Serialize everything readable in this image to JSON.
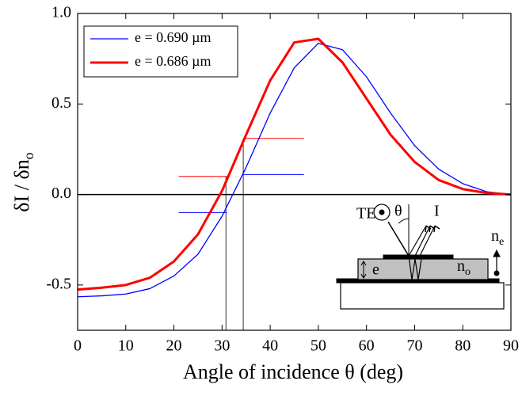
{
  "chart_data": {
    "type": "line",
    "xlabel": "Angle of incidence θ (deg)",
    "ylabel": "δI / δn",
    "ylabel_sub": "o",
    "x": [
      0,
      5,
      10,
      15,
      20,
      25,
      30,
      35,
      40,
      45,
      50,
      55,
      60,
      65,
      70,
      75,
      80,
      85,
      90
    ],
    "series": [
      {
        "name": "e = 0.690 µm",
        "color": "#0000ff",
        "width": 1.3,
        "values": [
          -0.565,
          -0.56,
          -0.55,
          -0.52,
          -0.45,
          -0.33,
          -0.12,
          0.15,
          0.45,
          0.7,
          0.835,
          0.8,
          0.65,
          0.45,
          0.27,
          0.14,
          0.06,
          0.015,
          0
        ]
      },
      {
        "name": "e = 0.686 µm",
        "color": "#ff0000",
        "width": 3,
        "values": [
          -0.525,
          -0.515,
          -0.5,
          -0.46,
          -0.37,
          -0.22,
          0.02,
          0.33,
          0.63,
          0.84,
          0.86,
          0.73,
          0.53,
          0.33,
          0.18,
          0.08,
          0.03,
          0.008,
          0
        ]
      }
    ],
    "xlim": [
      0,
      90
    ],
    "xticks": [
      0,
      10,
      20,
      30,
      40,
      50,
      60,
      70,
      80,
      90
    ],
    "ylim": [
      -0.75,
      1.0
    ],
    "yticks": [
      -0.5,
      {
        "value": 0,
        "label": "0.0"
      },
      0.5,
      {
        "value": 1,
        "label": "1.0"
      }
    ],
    "hlines": [
      0
    ],
    "segments": [
      {
        "color": "#ff0000",
        "x": [
          21,
          31
        ],
        "y": 0.1
      },
      {
        "color": "#ff0000",
        "x": [
          34.4,
          47
        ],
        "y": 0.31
      },
      {
        "color": "#0000ff",
        "x": [
          21,
          31
        ],
        "y": -0.1
      },
      {
        "color": "#0000ff",
        "x": [
          34.4,
          47
        ],
        "y": 0.11
      }
    ],
    "vlines": [
      {
        "x": 30.8,
        "y": 0.1
      },
      {
        "x": 34.4,
        "y": 0.31
      }
    ],
    "legend": "upper left",
    "inset": {
      "te": "TE",
      "theta": "θ",
      "i": "I",
      "ne": "n",
      "ne_sub": "e",
      "no": "n",
      "no_sub": "o",
      "e": "e"
    }
  }
}
